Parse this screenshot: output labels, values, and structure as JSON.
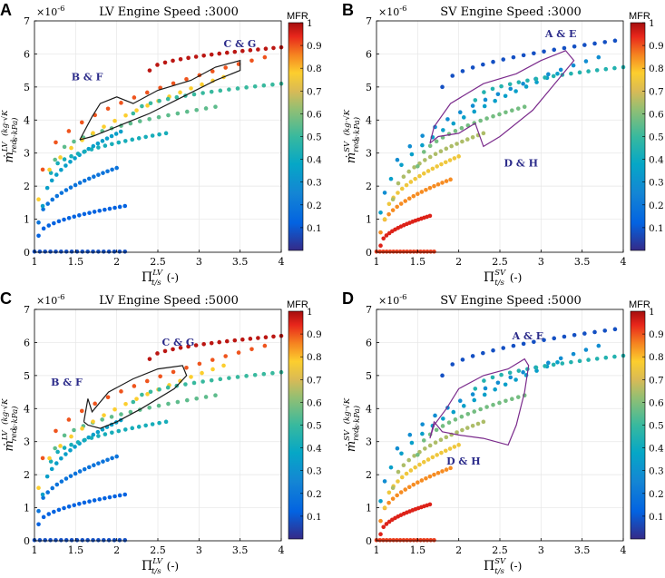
{
  "chart_data": [
    {
      "panel": "A",
      "type": "scatter",
      "title": "LV Engine Speed :3000",
      "xlabel": "Π_t/s^LV (-)",
      "x_sym": "Π",
      "x_sub": "t/s",
      "x_sup": "LV",
      "x_unit": "(-)",
      "y_sym": "ṁ",
      "y_sub": "red",
      "y_sup": "LV",
      "y_frac_num": "kg·√K",
      "y_frac_den": "s·kPa",
      "y_multiplier": "×10-6",
      "xlim": [
        1,
        4
      ],
      "ylim": [
        0,
        7
      ],
      "xticks": [
        "1",
        "1.5",
        "2",
        "2.5",
        "3",
        "3.5",
        "4"
      ],
      "yticks": [
        "0",
        "1",
        "2",
        "3",
        "4",
        "5",
        "6",
        "7"
      ],
      "colorbar": {
        "title": "MFR",
        "ticks": [
          "0.1",
          "0.2",
          "0.3",
          "0.4",
          "0.5",
          "0.6",
          "0.7",
          "0.8",
          "0.9",
          "1"
        ]
      },
      "annotations": [
        {
          "text": "B & F",
          "x": 1.45,
          "y": 5.2
        },
        {
          "text": "C & G",
          "x": 3.3,
          "y": 6.2
        }
      ],
      "speedlines": [
        {
          "mfr": 0.08,
          "x0": 1.0,
          "x1": 2.1,
          "y0": 0.02,
          "y1": 0.02
        },
        {
          "mfr": 0.12,
          "x0": 1.05,
          "x1": 2.1,
          "y0": 0.5,
          "y1": 1.4
        },
        {
          "mfr": 0.18,
          "x0": 1.05,
          "x1": 2.0,
          "y0": 0.9,
          "y1": 2.55
        },
        {
          "mfr": 0.35,
          "x0": 1.1,
          "x1": 2.05,
          "y0": 1.4,
          "y1": 3.65
        },
        {
          "mfr": 0.42,
          "x0": 1.2,
          "x1": 2.6,
          "y0": 2.4,
          "y1": 3.6
        },
        {
          "mfr": 0.55,
          "x0": 1.25,
          "x1": 3.2,
          "y0": 2.8,
          "y1": 4.4
        },
        {
          "mfr": 0.78,
          "x0": 1.05,
          "x1": 3.3,
          "y0": 1.6,
          "y1": 5.3
        },
        {
          "mfr": 0.9,
          "x0": 1.1,
          "x1": 3.8,
          "y0": 2.5,
          "y1": 5.9
        },
        {
          "mfr": 0.5,
          "x0": 2.2,
          "x1": 4.0,
          "y0": 4.2,
          "y1": 5.1
        },
        {
          "mfr": 0.98,
          "x0": 2.4,
          "x1": 4.0,
          "y0": 5.5,
          "y1": 6.2
        }
      ],
      "loop": [
        [
          1.55,
          3.4
        ],
        [
          1.7,
          4.1
        ],
        [
          1.8,
          4.5
        ],
        [
          2.0,
          4.7
        ],
        [
          2.2,
          4.5
        ],
        [
          2.5,
          4.9
        ],
        [
          2.9,
          5.2
        ],
        [
          3.2,
          5.6
        ],
        [
          3.5,
          5.8
        ],
        [
          3.5,
          5.5
        ],
        [
          3.2,
          5.2
        ],
        [
          2.8,
          4.7
        ],
        [
          2.4,
          4.2
        ],
        [
          2.0,
          3.8
        ],
        [
          1.7,
          3.5
        ],
        [
          1.55,
          3.4
        ]
      ],
      "loop_color": "#1a1a1a"
    },
    {
      "panel": "B",
      "type": "scatter",
      "title": "SV Engine Speed :3000",
      "xlabel": "Π_t/s^SV (-)",
      "x_sym": "Π",
      "x_sub": "t/s",
      "x_sup": "SV",
      "x_unit": "(-)",
      "y_sym": "ṁ",
      "y_sub": "red",
      "y_sup": "SV",
      "y_frac_num": "kg·√K",
      "y_frac_den": "s·kPa",
      "y_multiplier": "×10-6",
      "xlim": [
        1,
        4
      ],
      "ylim": [
        0,
        7
      ],
      "xticks": [
        "1",
        "1.5",
        "2",
        "2.5",
        "3",
        "3.5",
        "4"
      ],
      "yticks": [
        "0",
        "1",
        "2",
        "3",
        "4",
        "5",
        "6",
        "7"
      ],
      "colorbar": {
        "title": "MFR",
        "ticks": [
          "0.1",
          "0.2",
          "0.3",
          "0.4",
          "0.5",
          "0.6",
          "0.7",
          "0.8",
          "0.9",
          "1"
        ]
      },
      "annotations": [
        {
          "text": "A & E",
          "x": 3.05,
          "y": 6.5
        },
        {
          "text": "D & H",
          "x": 2.55,
          "y": 2.6
        }
      ],
      "speedlines": [
        {
          "mfr": 0.92,
          "x0": 1.0,
          "x1": 1.7,
          "y0": 0.02,
          "y1": 0.02
        },
        {
          "mfr": 0.95,
          "x0": 1.05,
          "x1": 1.65,
          "y0": 0.2,
          "y1": 1.1
        },
        {
          "mfr": 0.85,
          "x0": 1.05,
          "x1": 1.9,
          "y0": 0.6,
          "y1": 2.2
        },
        {
          "mfr": 0.75,
          "x0": 1.1,
          "x1": 2.0,
          "y0": 1.0,
          "y1": 2.9
        },
        {
          "mfr": 0.65,
          "x0": 1.2,
          "x1": 2.3,
          "y0": 1.6,
          "y1": 3.6
        },
        {
          "mfr": 0.58,
          "x0": 1.5,
          "x1": 2.8,
          "y0": 2.6,
          "y1": 4.4
        },
        {
          "mfr": 0.35,
          "x0": 1.05,
          "x1": 3.2,
          "y0": 1.2,
          "y1": 5.4
        },
        {
          "mfr": 0.28,
          "x0": 1.1,
          "x1": 3.7,
          "y0": 1.8,
          "y1": 5.9
        },
        {
          "mfr": 0.45,
          "x0": 2.2,
          "x1": 4.0,
          "y0": 4.6,
          "y1": 5.6
        },
        {
          "mfr": 0.08,
          "x0": 1.8,
          "x1": 3.9,
          "y0": 5.0,
          "y1": 6.4
        }
      ],
      "loop": [
        [
          1.65,
          3.3
        ],
        [
          1.75,
          3.5
        ],
        [
          2.0,
          3.6
        ],
        [
          2.2,
          3.9
        ],
        [
          2.3,
          3.2
        ],
        [
          2.5,
          3.5
        ],
        [
          2.9,
          4.3
        ],
        [
          3.2,
          5.2
        ],
        [
          3.4,
          5.8
        ],
        [
          3.3,
          6.1
        ],
        [
          3.0,
          5.8
        ],
        [
          2.7,
          5.4
        ],
        [
          2.3,
          5.1
        ],
        [
          1.9,
          4.5
        ],
        [
          1.7,
          3.8
        ],
        [
          1.65,
          3.3
        ]
      ],
      "loop_color": "#7b2b8c"
    },
    {
      "panel": "C",
      "type": "scatter",
      "title": "LV Engine Speed :5000",
      "xlabel": "Π_t/s^LV (-)",
      "x_sym": "Π",
      "x_sub": "t/s",
      "x_sup": "LV",
      "x_unit": "(-)",
      "y_sym": "ṁ",
      "y_sub": "red",
      "y_sup": "LV",
      "y_frac_num": "kg·√K",
      "y_frac_den": "s·kPa",
      "y_multiplier": "×10-6",
      "xlim": [
        1,
        4
      ],
      "ylim": [
        0,
        7
      ],
      "xticks": [
        "1",
        "1.5",
        "2",
        "2.5",
        "3",
        "3.5",
        "4"
      ],
      "yticks": [
        "0",
        "1",
        "2",
        "3",
        "4",
        "5",
        "6",
        "7"
      ],
      "colorbar": {
        "title": "MFR",
        "ticks": [
          "0.1",
          "0.2",
          "0.3",
          "0.4",
          "0.5",
          "0.6",
          "0.7",
          "0.8",
          "0.9",
          "1"
        ]
      },
      "annotations": [
        {
          "text": "B & F",
          "x": 1.2,
          "y": 4.7
        },
        {
          "text": "C & G",
          "x": 2.55,
          "y": 5.9
        }
      ],
      "speedlines": [
        {
          "mfr": 0.08,
          "x0": 1.0,
          "x1": 2.1,
          "y0": 0.02,
          "y1": 0.02
        },
        {
          "mfr": 0.12,
          "x0": 1.05,
          "x1": 2.1,
          "y0": 0.5,
          "y1": 1.4
        },
        {
          "mfr": 0.18,
          "x0": 1.05,
          "x1": 2.0,
          "y0": 0.9,
          "y1": 2.55
        },
        {
          "mfr": 0.35,
          "x0": 1.1,
          "x1": 2.05,
          "y0": 1.4,
          "y1": 3.65
        },
        {
          "mfr": 0.42,
          "x0": 1.2,
          "x1": 2.6,
          "y0": 2.4,
          "y1": 3.6
        },
        {
          "mfr": 0.55,
          "x0": 1.25,
          "x1": 3.2,
          "y0": 2.8,
          "y1": 4.4
        },
        {
          "mfr": 0.78,
          "x0": 1.05,
          "x1": 3.3,
          "y0": 1.6,
          "y1": 5.3
        },
        {
          "mfr": 0.9,
          "x0": 1.1,
          "x1": 3.8,
          "y0": 2.5,
          "y1": 5.9
        },
        {
          "mfr": 0.5,
          "x0": 2.2,
          "x1": 4.0,
          "y0": 4.2,
          "y1": 5.1
        },
        {
          "mfr": 0.98,
          "x0": 2.4,
          "x1": 4.0,
          "y0": 5.5,
          "y1": 6.2
        }
      ],
      "loop": [
        [
          1.6,
          3.6
        ],
        [
          1.65,
          4.3
        ],
        [
          1.7,
          3.9
        ],
        [
          1.9,
          4.5
        ],
        [
          2.2,
          4.9
        ],
        [
          2.5,
          5.2
        ],
        [
          2.8,
          5.3
        ],
        [
          2.85,
          5.0
        ],
        [
          2.7,
          4.6
        ],
        [
          2.3,
          4.0
        ],
        [
          2.0,
          3.6
        ],
        [
          1.8,
          3.4
        ],
        [
          1.65,
          3.5
        ],
        [
          1.6,
          3.6
        ]
      ],
      "loop_color": "#1a1a1a"
    },
    {
      "panel": "D",
      "type": "scatter",
      "title": "SV Engine Speed :5000",
      "xlabel": "Π_t/s^SV (-)",
      "x_sym": "Π",
      "x_sub": "t/s",
      "x_sup": "SV",
      "x_unit": "(-)",
      "y_sym": "ṁ",
      "y_sub": "red",
      "y_sup": "SV",
      "y_frac_num": "kg·√K",
      "y_frac_den": "s·kPa",
      "y_multiplier": "×10-6",
      "xlim": [
        1,
        4
      ],
      "ylim": [
        0,
        7
      ],
      "xticks": [
        "1",
        "1.5",
        "2",
        "2.5",
        "3",
        "3.5",
        "4"
      ],
      "yticks": [
        "0",
        "1",
        "2",
        "3",
        "4",
        "5",
        "6",
        "7"
      ],
      "colorbar": {
        "title": "MFR",
        "ticks": [
          "0.1",
          "0.2",
          "0.3",
          "0.4",
          "0.5",
          "0.6",
          "0.7",
          "0.8",
          "0.9",
          "1"
        ]
      },
      "annotations": [
        {
          "text": "A & E",
          "x": 2.65,
          "y": 6.1
        },
        {
          "text": "D & H",
          "x": 1.85,
          "y": 2.3
        }
      ],
      "speedlines": [
        {
          "mfr": 0.92,
          "x0": 1.0,
          "x1": 1.7,
          "y0": 0.02,
          "y1": 0.02
        },
        {
          "mfr": 0.95,
          "x0": 1.05,
          "x1": 1.65,
          "y0": 0.2,
          "y1": 1.1
        },
        {
          "mfr": 0.85,
          "x0": 1.05,
          "x1": 1.9,
          "y0": 0.6,
          "y1": 2.2
        },
        {
          "mfr": 0.75,
          "x0": 1.1,
          "x1": 2.0,
          "y0": 1.0,
          "y1": 2.9
        },
        {
          "mfr": 0.65,
          "x0": 1.2,
          "x1": 2.3,
          "y0": 1.6,
          "y1": 3.6
        },
        {
          "mfr": 0.58,
          "x0": 1.5,
          "x1": 2.8,
          "y0": 2.6,
          "y1": 4.4
        },
        {
          "mfr": 0.35,
          "x0": 1.05,
          "x1": 3.2,
          "y0": 1.2,
          "y1": 5.4
        },
        {
          "mfr": 0.28,
          "x0": 1.1,
          "x1": 3.7,
          "y0": 1.8,
          "y1": 5.9
        },
        {
          "mfr": 0.45,
          "x0": 2.2,
          "x1": 4.0,
          "y0": 4.6,
          "y1": 5.6
        },
        {
          "mfr": 0.08,
          "x0": 1.8,
          "x1": 3.9,
          "y0": 5.0,
          "y1": 6.4
        }
      ],
      "loop": [
        [
          1.65,
          3.1
        ],
        [
          1.7,
          3.6
        ],
        [
          1.8,
          3.3
        ],
        [
          2.0,
          3.2
        ],
        [
          2.3,
          3.1
        ],
        [
          2.6,
          2.9
        ],
        [
          2.7,
          3.5
        ],
        [
          2.8,
          4.5
        ],
        [
          2.85,
          5.3
        ],
        [
          2.8,
          5.5
        ],
        [
          2.6,
          5.2
        ],
        [
          2.3,
          5.0
        ],
        [
          2.0,
          4.6
        ],
        [
          1.85,
          4.0
        ],
        [
          1.7,
          3.5
        ],
        [
          1.65,
          3.1
        ]
      ],
      "loop_color": "#7b2b8c"
    }
  ]
}
